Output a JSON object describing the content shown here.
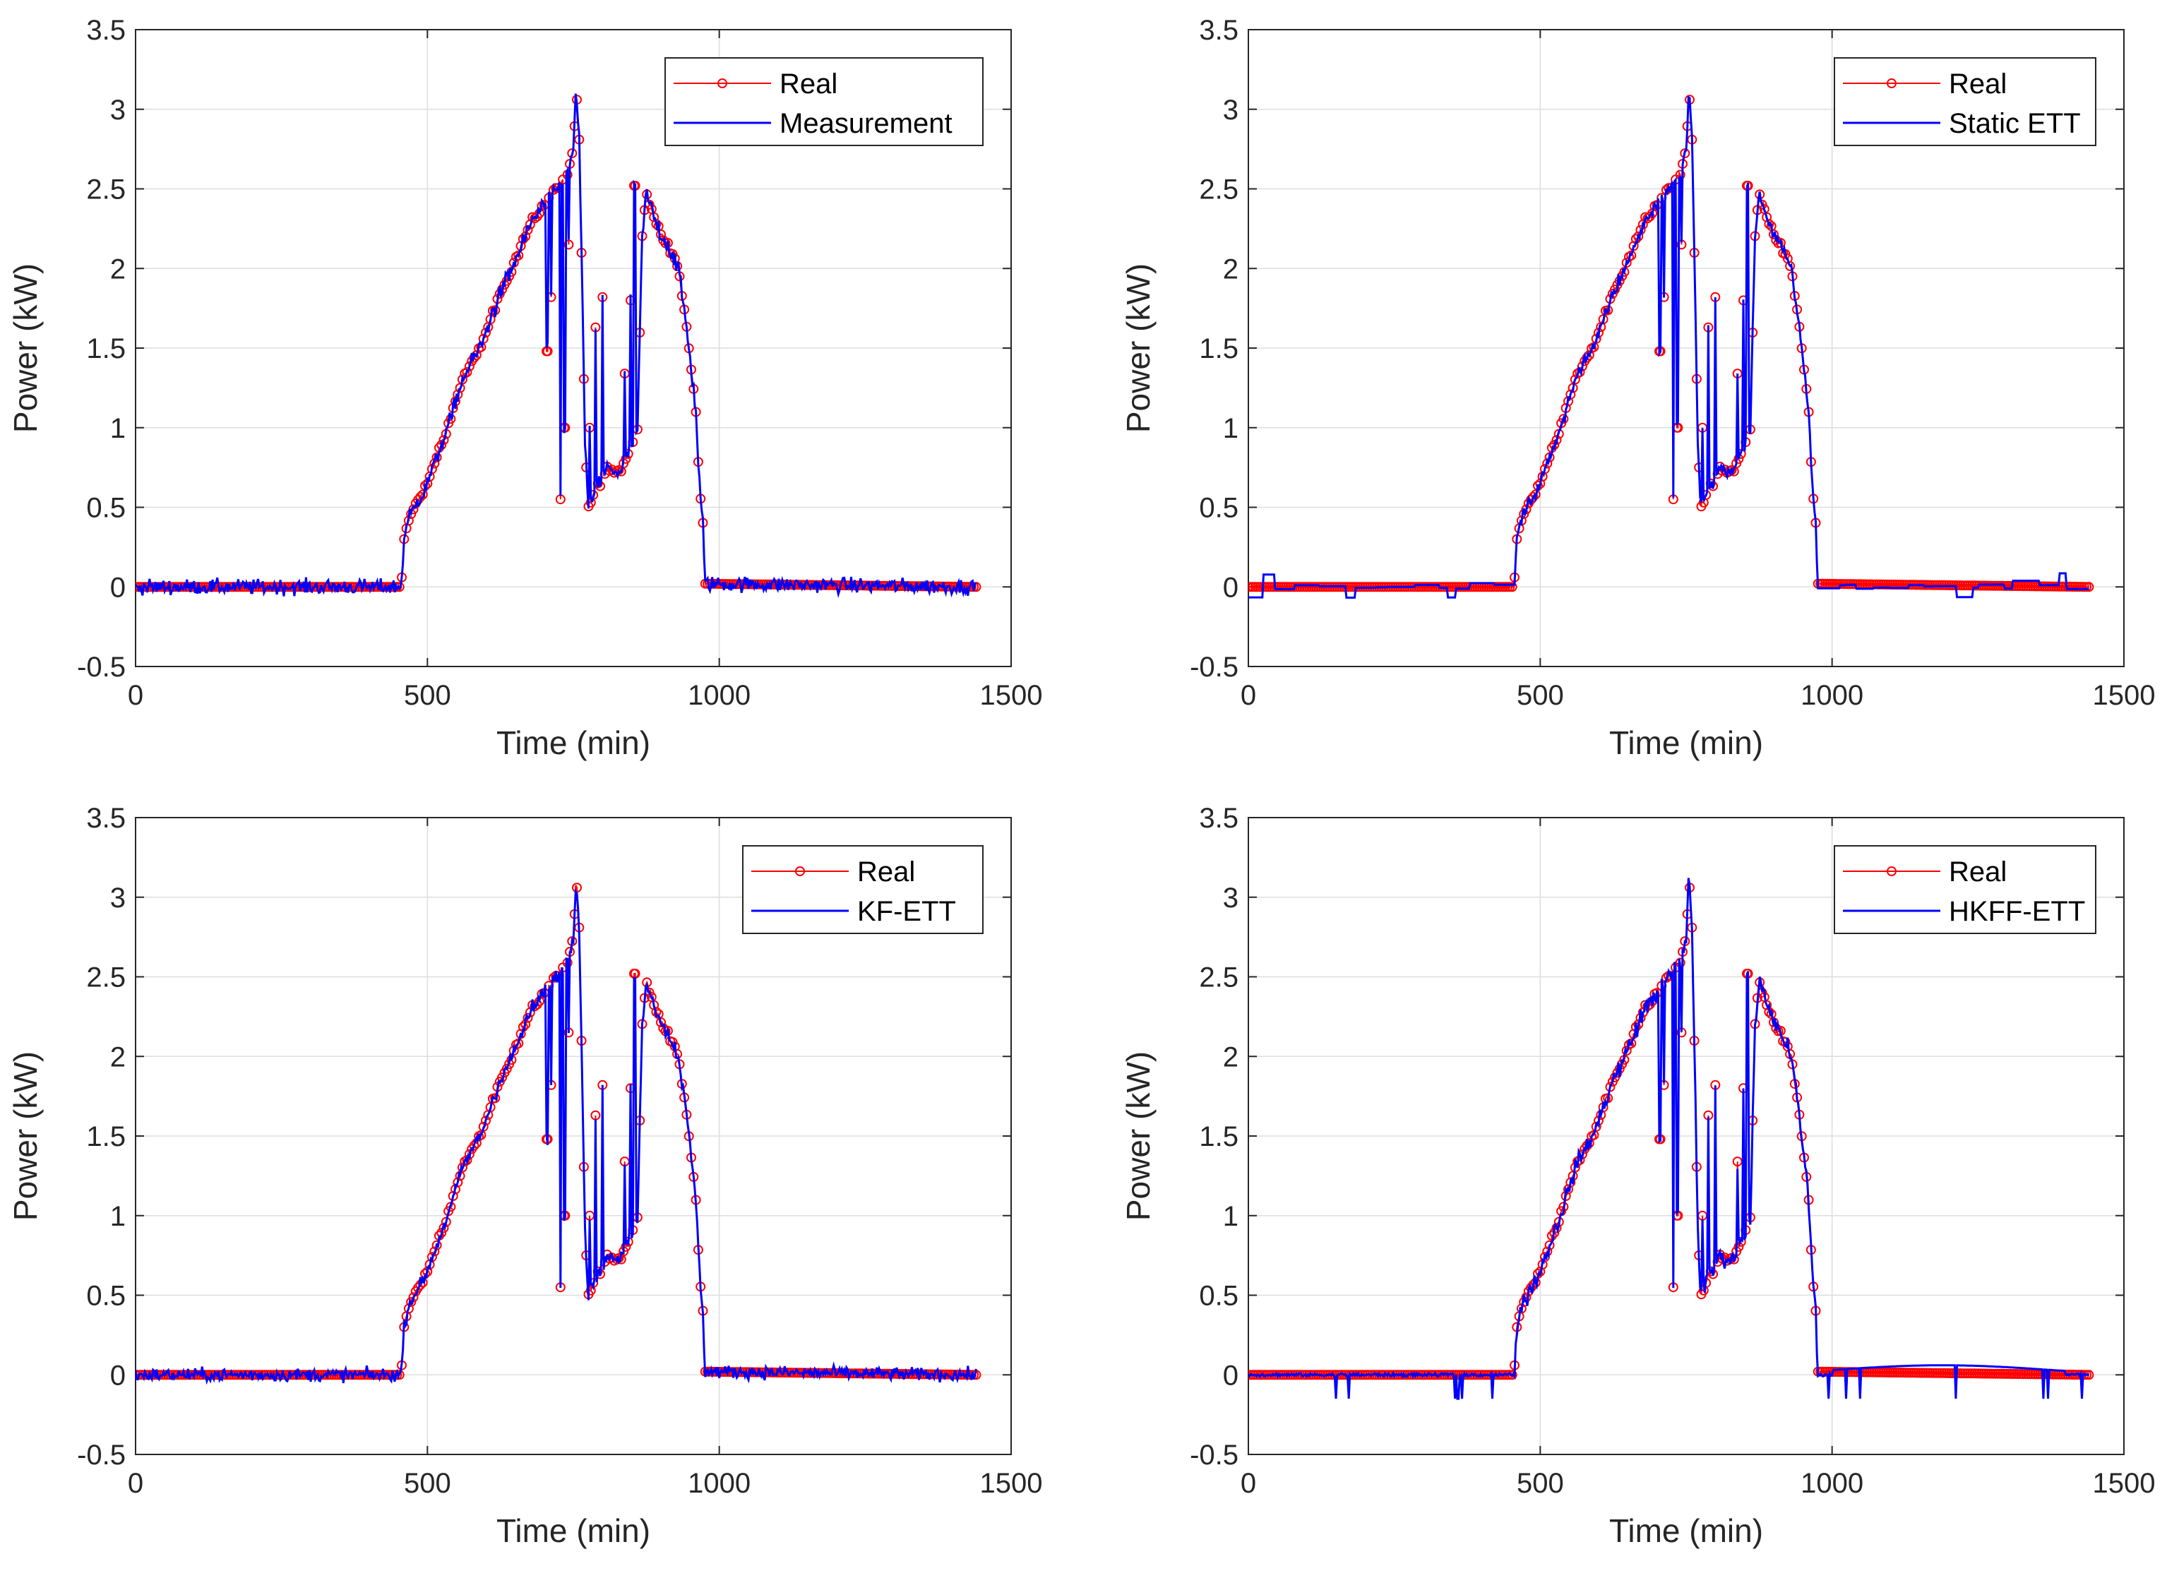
{
  "colors": {
    "real": "#ff0000",
    "estimate": "#0000ff",
    "axis": "#262626",
    "grid": "#dedede"
  },
  "chart_data": [
    {
      "type": "line",
      "panel": "top-left",
      "title": "",
      "xlabel": "Time (min)",
      "ylabel": "Power (kW)",
      "xlim": [
        0,
        1500
      ],
      "ylim": [
        -0.5,
        3.5
      ],
      "xticks": [
        "0",
        "500",
        "1000",
        "1500"
      ],
      "yticks": [
        "-0.5",
        "0",
        "0.5",
        "1",
        "1.5",
        "2",
        "2.5",
        "3",
        "3.5"
      ],
      "grid": true,
      "legend_position": "top-right",
      "series": [
        {
          "name": "Real",
          "marker": "circle",
          "profile": "real"
        },
        {
          "name": "Measurement",
          "profile": "measurement"
        }
      ]
    },
    {
      "type": "line",
      "panel": "top-right",
      "title": "",
      "xlabel": "Time (min)",
      "ylabel": "Power (kW)",
      "xlim": [
        0,
        1500
      ],
      "ylim": [
        -0.5,
        3.5
      ],
      "xticks": [
        "0",
        "500",
        "1000",
        "1500"
      ],
      "yticks": [
        "-0.5",
        "0",
        "0.5",
        "1",
        "1.5",
        "2",
        "2.5",
        "3",
        "3.5"
      ],
      "grid": true,
      "legend_position": "top-right",
      "series": [
        {
          "name": "Real",
          "marker": "circle",
          "profile": "real"
        },
        {
          "name": "Static ETT",
          "profile": "static"
        }
      ]
    },
    {
      "type": "line",
      "panel": "bottom-left",
      "title": "",
      "xlabel": "Time (min)",
      "ylabel": "Power (kW)",
      "xlim": [
        0,
        1500
      ],
      "ylim": [
        -0.5,
        3.5
      ],
      "xticks": [
        "0",
        "500",
        "1000",
        "1500"
      ],
      "yticks": [
        "-0.5",
        "0",
        "0.5",
        "1",
        "1.5",
        "2",
        "2.5",
        "3",
        "3.5"
      ],
      "grid": true,
      "legend_position": "top-right",
      "series": [
        {
          "name": "Real",
          "marker": "circle",
          "profile": "real"
        },
        {
          "name": "KF-ETT",
          "profile": "kf"
        }
      ]
    },
    {
      "type": "line",
      "panel": "bottom-right",
      "title": "",
      "xlabel": "Time (min)",
      "ylabel": "Power (kW)",
      "xlim": [
        0,
        1500
      ],
      "ylim": [
        -0.5,
        3.5
      ],
      "xticks": [
        "0",
        "500",
        "1000",
        "1500"
      ],
      "yticks": [
        "-0.5",
        "0",
        "0.5",
        "1",
        "1.5",
        "2",
        "2.5",
        "3",
        "3.5"
      ],
      "grid": true,
      "legend_position": "top-right",
      "series": [
        {
          "name": "Real",
          "marker": "circle",
          "profile": "real"
        },
        {
          "name": "HKFF-ETT",
          "profile": "hkff"
        }
      ]
    }
  ],
  "real_profile": {
    "minutes_total": 1440,
    "keypoints": [
      [
        0,
        0
      ],
      [
        455,
        0
      ],
      [
        460,
        0.3
      ],
      [
        470,
        0.45
      ],
      [
        500,
        0.65
      ],
      [
        530,
        0.95
      ],
      [
        560,
        1.3
      ],
      [
        590,
        1.5
      ],
      [
        620,
        1.8
      ],
      [
        650,
        2.05
      ],
      [
        680,
        2.3
      ],
      [
        700,
        2.4
      ],
      [
        720,
        2.5
      ],
      [
        740,
        2.6
      ],
      [
        750,
        2.75
      ],
      [
        755,
        3.13
      ],
      [
        760,
        2.8
      ],
      [
        765,
        1.9
      ],
      [
        770,
        0.9
      ],
      [
        775,
        0.5
      ],
      [
        790,
        0.62
      ],
      [
        810,
        0.75
      ],
      [
        830,
        0.72
      ],
      [
        850,
        0.9
      ],
      [
        860,
        1.0
      ],
      [
        868,
        2.2
      ],
      [
        875,
        2.48
      ],
      [
        890,
        2.3
      ],
      [
        910,
        2.15
      ],
      [
        930,
        2.0
      ],
      [
        945,
        1.6
      ],
      [
        960,
        1.1
      ],
      [
        965,
        0.7
      ],
      [
        972,
        0.4
      ],
      [
        975,
        0.02
      ],
      [
        1440,
        0
      ]
    ],
    "spikes": [
      [
        705,
        1.48
      ],
      [
        712,
        1.82
      ],
      [
        728,
        0.55
      ],
      [
        735,
        1.0
      ],
      [
        742,
        2.15
      ],
      [
        778,
        1.0
      ],
      [
        788,
        1.63
      ],
      [
        800,
        1.82
      ],
      [
        838,
        1.34
      ],
      [
        848,
        1.8
      ],
      [
        855,
        2.52
      ]
    ]
  }
}
